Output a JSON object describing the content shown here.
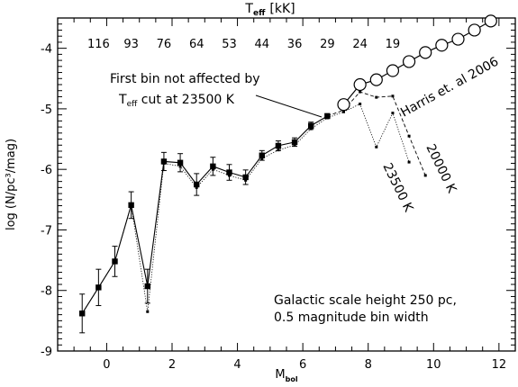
{
  "chart_data": {
    "type": "line",
    "xlabel_main": "M",
    "xlabel_sub": "bol",
    "ylabel": "log (N/pc³/mag)",
    "top_axis_label_main": "T",
    "top_axis_label_sub": "eff",
    "top_axis_label_unit": "[kK]",
    "xlim": [
      -1.5,
      12.5
    ],
    "ylim": [
      -9,
      -3.5
    ],
    "x_ticks": [
      "0",
      "2",
      "4",
      "6",
      "8",
      "10",
      "12"
    ],
    "y_ticks": [
      "-4",
      "-5",
      "-6",
      "-7",
      "-8",
      "-9"
    ],
    "top_ticks": [
      {
        "label": "116",
        "mbol": -0.25
      },
      {
        "label": "93",
        "mbol": 0.75
      },
      {
        "label": "76",
        "mbol": 1.75
      },
      {
        "label": "64",
        "mbol": 2.75
      },
      {
        "label": "53",
        "mbol": 3.75
      },
      {
        "label": "44",
        "mbol": 4.75
      },
      {
        "label": "36",
        "mbol": 5.75
      },
      {
        "label": "29",
        "mbol": 6.75
      },
      {
        "label": "24",
        "mbol": 7.75
      },
      {
        "label": "19",
        "mbol": 8.75
      }
    ],
    "series": [
      {
        "style": "solid-squares",
        "x": [
          -0.75,
          -0.25,
          0.25,
          0.75,
          1.25,
          1.75,
          2.25,
          2.75,
          3.25,
          3.75,
          4.25,
          4.75,
          5.25,
          5.75,
          6.25,
          6.75
        ],
        "y": [
          -8.38,
          -7.95,
          -7.52,
          -6.59,
          -7.93,
          -5.87,
          -5.89,
          -6.25,
          -5.95,
          -6.05,
          -6.13,
          -5.77,
          -5.61,
          -5.55,
          -5.28,
          -5.12
        ],
        "err": [
          0.32,
          0.3,
          0.25,
          0.22,
          0.28,
          0.15,
          0.15,
          0.18,
          0.15,
          0.13,
          0.12,
          0.08,
          0.08,
          0.07,
          0.06,
          0.04
        ]
      },
      {
        "style": "dotted-small",
        "x": [
          -0.75,
          -0.25,
          0.25,
          0.75,
          1.25,
          1.75,
          2.25,
          2.75,
          3.25,
          3.75,
          4.25,
          4.75,
          5.25,
          5.75,
          6.25,
          6.75,
          7.25,
          7.75,
          8.25,
          8.75,
          9.25
        ],
        "y": [
          -8.38,
          -7.95,
          -7.52,
          -6.59,
          -8.35,
          -5.9,
          -5.95,
          -6.3,
          -6.0,
          -6.1,
          -6.18,
          -5.82,
          -5.68,
          -5.6,
          -5.33,
          -5.15,
          -5.05,
          -4.92,
          -5.63,
          -5.07,
          -5.88
        ]
      },
      {
        "style": "dashed-small",
        "x": [
          6.75,
          7.25,
          7.75,
          8.25,
          8.75,
          9.25,
          9.75
        ],
        "y": [
          -5.12,
          -5.02,
          -4.72,
          -4.81,
          -4.79,
          -5.45,
          -6.1
        ]
      },
      {
        "name": "Harris et. al 2006",
        "style": "open-circles",
        "x": [
          7.25,
          7.75,
          8.25,
          8.75,
          9.25,
          9.75,
          10.25,
          10.75,
          11.25,
          11.75
        ],
        "y": [
          -4.93,
          -4.6,
          -4.52,
          -4.37,
          -4.22,
          -4.07,
          -3.95,
          -3.85,
          -3.7,
          -3.55
        ]
      }
    ],
    "annotations": {
      "first_bin_line1": "First bin not affected by",
      "first_bin_line2_main": "T",
      "first_bin_line2_sub": "eff",
      "first_bin_line2_rest": " cut at 23500 K",
      "harris_label": "Harris et. al 2006",
      "label_23500": "23500 K",
      "label_20000": "20000 K",
      "info_line1": "Galactic scale height  250 pc,",
      "info_line2": "0.5 magnitude bin width"
    }
  }
}
